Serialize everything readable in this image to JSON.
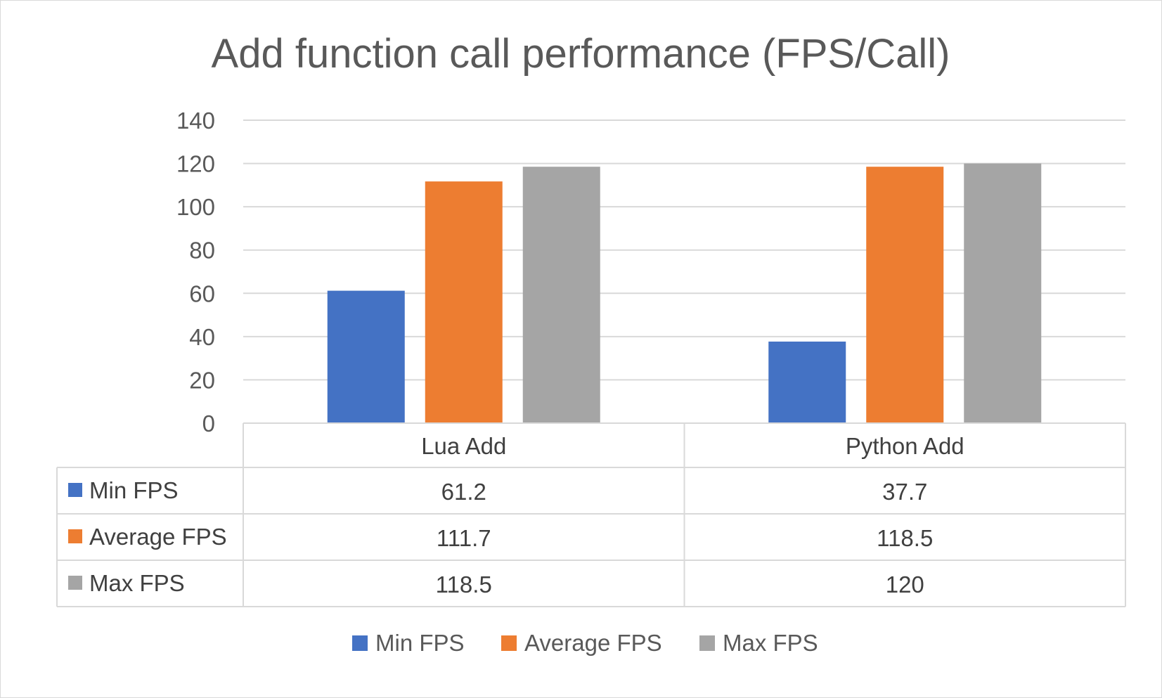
{
  "chart_data": {
    "type": "bar",
    "title": "Add function call performance (FPS/Call)",
    "categories": [
      "Lua Add",
      "Python Add"
    ],
    "series": [
      {
        "name": "Min FPS",
        "values": [
          61.2,
          37.7
        ],
        "color": "#4472c4"
      },
      {
        "name": "Average FPS",
        "values": [
          111.7,
          118.5
        ],
        "color": "#ed7d31"
      },
      {
        "name": "Max FPS",
        "values": [
          118.5,
          120
        ],
        "color": "#a5a5a5"
      }
    ],
    "data_table": {
      "rows": [
        {
          "series": "Min FPS",
          "cells": [
            "61.2",
            "37.7"
          ]
        },
        {
          "series": "Average FPS",
          "cells": [
            "111.7",
            "118.5"
          ]
        },
        {
          "series": "Max FPS",
          "cells": [
            "118.5",
            "120"
          ]
        }
      ]
    },
    "ylim": [
      0,
      140
    ],
    "y_ticks": [
      0,
      20,
      40,
      60,
      80,
      100,
      120,
      140
    ],
    "grid": true,
    "legend_position": "bottom",
    "colors": {
      "gridline": "#d9d9d9",
      "axis_text": "#595959",
      "table_border": "#d9d9d9"
    }
  }
}
